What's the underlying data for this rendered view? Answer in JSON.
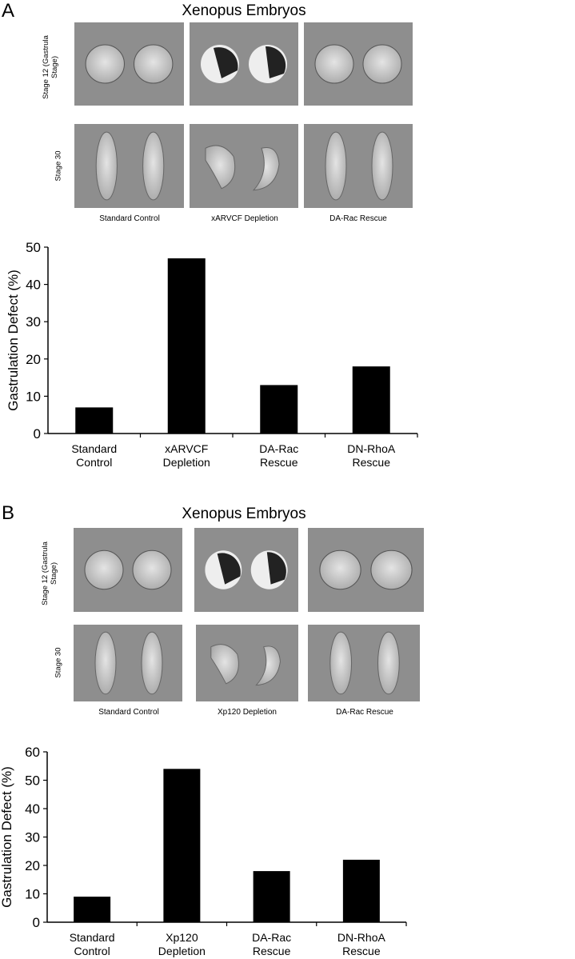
{
  "panels": [
    {
      "letter": "A",
      "title": "Xenopus Embryos",
      "row_labels": [
        "Stage 12 (Gastrula Stage)",
        "Stage 30"
      ],
      "captions": [
        "Standard Control",
        "xARVCF Depletion",
        "DA-Rac Rescue"
      ]
    },
    {
      "letter": "B",
      "title": "Xenopus Embryos",
      "row_labels": [
        "Stage 12 (Gastrula Stage)",
        "Stage 30"
      ],
      "captions": [
        "Standard Control",
        "Xp120 Depletion",
        "DA-Rac Rescue"
      ]
    }
  ],
  "chart_data": [
    {
      "type": "bar",
      "title": "",
      "xlabel": "",
      "ylabel": "Gastrulation Defect (%)",
      "categories": [
        "Standard Control",
        "xARVCF Depletion",
        "DA-Rac Rescue",
        "DN-RhoA Rescue"
      ],
      "values": [
        7,
        47,
        13,
        18
      ],
      "ylim": [
        0,
        50
      ],
      "yticks": [
        0,
        10,
        20,
        30,
        40,
        50
      ],
      "grid": false,
      "bar_color": "#000000"
    },
    {
      "type": "bar",
      "title": "",
      "xlabel": "",
      "ylabel": "Gastrulation Defect (%)",
      "categories": [
        "Standard Control",
        "Xp120 Depletion",
        "DA-Rac Rescue",
        "DN-RhoA Rescue"
      ],
      "values": [
        9,
        54,
        18,
        22
      ],
      "ylim": [
        0,
        60
      ],
      "yticks": [
        0,
        10,
        20,
        30,
        40,
        50,
        60
      ],
      "grid": false,
      "bar_color": "#000000"
    }
  ]
}
